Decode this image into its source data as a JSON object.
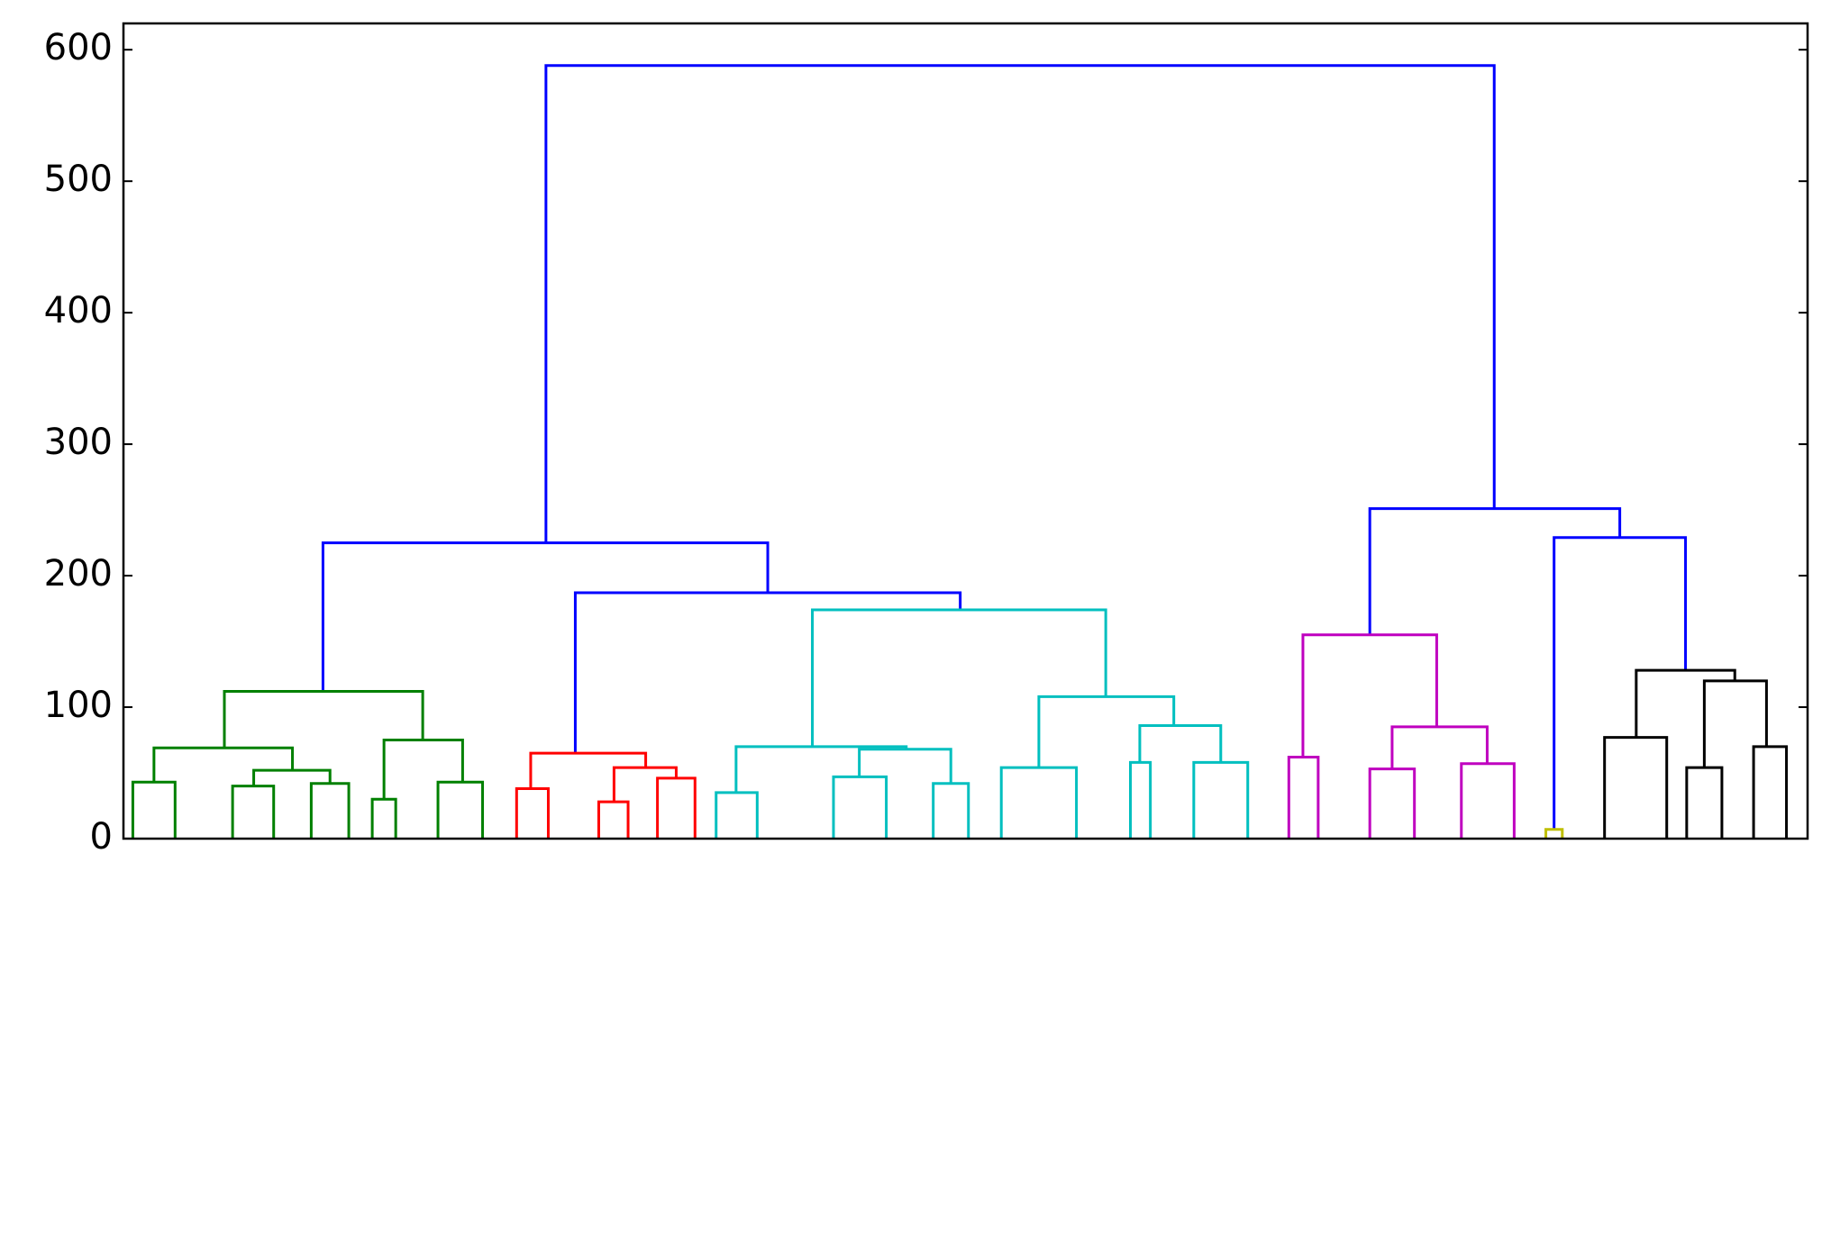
{
  "chart_data": {
    "type": "dendrogram",
    "xlim": [
      0,
      1435
    ],
    "ylim": [
      0,
      620
    ],
    "yticks": [
      0,
      100,
      200,
      300,
      400,
      500,
      600
    ],
    "links": [
      {
        "color": "#0000ff",
        "left": [
          360,
          225
        ],
        "right": [
          1168,
          251
        ],
        "height": 588
      },
      {
        "color": "#0000ff",
        "left": [
          170,
          112
        ],
        "right": [
          549,
          187
        ],
        "height": 225
      },
      {
        "color": "#008000",
        "left": [
          86,
          69
        ],
        "right": [
          255,
          75
        ],
        "height": 112
      },
      {
        "color": "#008000",
        "left": [
          26,
          43
        ],
        "right": [
          144,
          52
        ],
        "height": 69
      },
      {
        "color": "#008000",
        "left": [
          222,
          30
        ],
        "right": [
          289,
          43
        ],
        "height": 75
      },
      {
        "color": "#008000",
        "left": [
          8,
          0
        ],
        "right": [
          44,
          0
        ],
        "height": 43
      },
      {
        "color": "#008000",
        "left": [
          111,
          40
        ],
        "right": [
          176,
          42
        ],
        "height": 52
      },
      {
        "color": "#008000",
        "left": [
          93,
          0
        ],
        "right": [
          128,
          0
        ],
        "height": 40
      },
      {
        "color": "#008000",
        "left": [
          160,
          0
        ],
        "right": [
          192,
          0
        ],
        "height": 42
      },
      {
        "color": "#008000",
        "left": [
          212,
          0
        ],
        "right": [
          232,
          0
        ],
        "height": 30
      },
      {
        "color": "#008000",
        "left": [
          268,
          0
        ],
        "right": [
          306,
          0
        ],
        "height": 43
      },
      {
        "color": "#0000ff",
        "left": [
          385,
          65
        ],
        "right": [
          713,
          174
        ],
        "height": 187
      },
      {
        "color": "#ff0000",
        "left": [
          347,
          38
        ],
        "right": [
          445,
          54
        ],
        "height": 65
      },
      {
        "color": "#ff0000",
        "left": [
          335,
          0
        ],
        "right": [
          362,
          0
        ],
        "height": 38
      },
      {
        "color": "#ff0000",
        "left": [
          418,
          28
        ],
        "right": [
          471,
          46
        ],
        "height": 54
      },
      {
        "color": "#ff0000",
        "left": [
          405,
          0
        ],
        "right": [
          430,
          0
        ],
        "height": 28
      },
      {
        "color": "#ff0000",
        "left": [
          455,
          0
        ],
        "right": [
          487,
          0
        ],
        "height": 46
      },
      {
        "color": "#00bfbf",
        "left": [
          587,
          70
        ],
        "right": [
          837,
          108
        ],
        "height": 174
      },
      {
        "color": "#00bfbf",
        "left": [
          522,
          35
        ],
        "right": [
          667,
          68
        ],
        "height": 70
      },
      {
        "color": "#00bfbf",
        "left": [
          505,
          0
        ],
        "right": [
          540,
          0
        ],
        "height": 35
      },
      {
        "color": "#00bfbf",
        "left": [
          627,
          47
        ],
        "right": [
          705,
          42
        ],
        "height": 68
      },
      {
        "color": "#00bfbf",
        "left": [
          605,
          0
        ],
        "right": [
          650,
          0
        ],
        "height": 47
      },
      {
        "color": "#00bfbf",
        "left": [
          690,
          0
        ],
        "right": [
          720,
          0
        ],
        "height": 42
      },
      {
        "color": "#00bfbf",
        "left": [
          780,
          54
        ],
        "right": [
          895,
          86
        ],
        "height": 108
      },
      {
        "color": "#00bfbf",
        "left": [
          748,
          0
        ],
        "right": [
          812,
          0
        ],
        "height": 54
      },
      {
        "color": "#00bfbf",
        "left": [
          866,
          58
        ],
        "right": [
          935,
          58
        ],
        "height": 86
      },
      {
        "color": "#00bfbf",
        "left": [
          858,
          0
        ],
        "right": [
          875,
          0
        ],
        "height": 58
      },
      {
        "color": "#00bfbf",
        "left": [
          912,
          0
        ],
        "right": [
          958,
          0
        ],
        "height": 58
      },
      {
        "color": "#0000ff",
        "left": [
          1062,
          155
        ],
        "right": [
          1275,
          229
        ],
        "height": 251
      },
      {
        "color": "#bf00bf",
        "left": [
          1005,
          62
        ],
        "right": [
          1119,
          85
        ],
        "height": 155
      },
      {
        "color": "#bf00bf",
        "left": [
          993,
          0
        ],
        "right": [
          1018,
          0
        ],
        "height": 62
      },
      {
        "color": "#bf00bf",
        "left": [
          1081,
          53
        ],
        "right": [
          1162,
          57
        ],
        "height": 85
      },
      {
        "color": "#bf00bf",
        "left": [
          1062,
          0
        ],
        "right": [
          1100,
          0
        ],
        "height": 53
      },
      {
        "color": "#bf00bf",
        "left": [
          1140,
          0
        ],
        "right": [
          1185,
          0
        ],
        "height": 57
      },
      {
        "color": "#0000ff",
        "left": [
          1219,
          7
        ],
        "right": [
          1331,
          128
        ],
        "height": 229
      },
      {
        "color": "#bfbf00",
        "left": [
          1212,
          0
        ],
        "right": [
          1226,
          0
        ],
        "height": 7
      },
      {
        "color": "#000000",
        "left": [
          1289,
          77
        ],
        "right": [
          1373,
          120
        ],
        "height": 128
      },
      {
        "color": "#000000",
        "left": [
          1262,
          0
        ],
        "right": [
          1315,
          0
        ],
        "height": 77
      },
      {
        "color": "#000000",
        "left": [
          1347,
          54
        ],
        "right": [
          1400,
          70
        ],
        "height": 120
      },
      {
        "color": "#000000",
        "left": [
          1332,
          0
        ],
        "right": [
          1362,
          0
        ],
        "height": 54
      },
      {
        "color": "#000000",
        "left": [
          1389,
          0
        ],
        "right": [
          1417,
          0
        ],
        "height": 70
      }
    ]
  }
}
